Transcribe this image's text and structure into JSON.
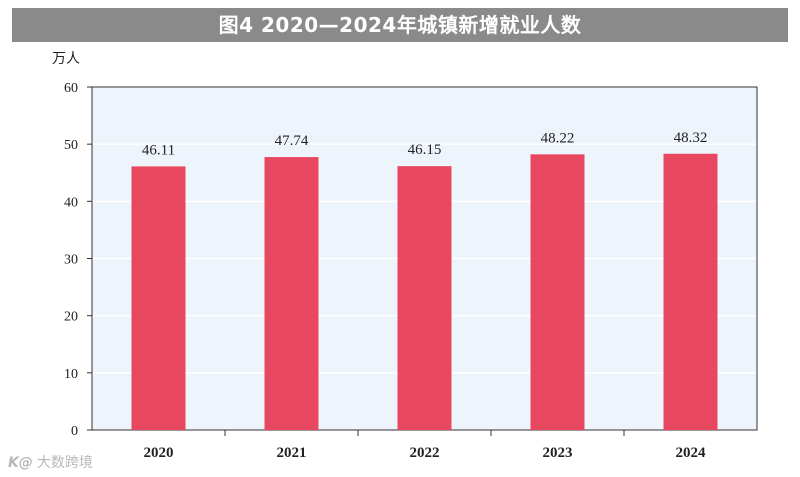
{
  "chart_data": {
    "type": "bar",
    "title": "图4  2020—2024年城镇新增就业人数",
    "ylabel": "万人",
    "xlabel": "",
    "categories": [
      "2020",
      "2021",
      "2022",
      "2023",
      "2024"
    ],
    "values": [
      46.11,
      47.74,
      46.15,
      48.22,
      48.32
    ],
    "data_labels": [
      "46.11",
      "47.74",
      "46.15",
      "48.22",
      "48.32"
    ],
    "ylim": [
      0,
      60
    ],
    "yticks": [
      0,
      10,
      20,
      30,
      40,
      50,
      60
    ],
    "grid": true,
    "legend": "none",
    "colors": {
      "bar": "#e8485f",
      "plot_background": "#eef4fb",
      "grid": "#ffffff",
      "axis": "#333333",
      "title_background": "#8a8a8a"
    }
  },
  "watermark": {
    "logo_text": "K@",
    "text": "大数跨境"
  }
}
